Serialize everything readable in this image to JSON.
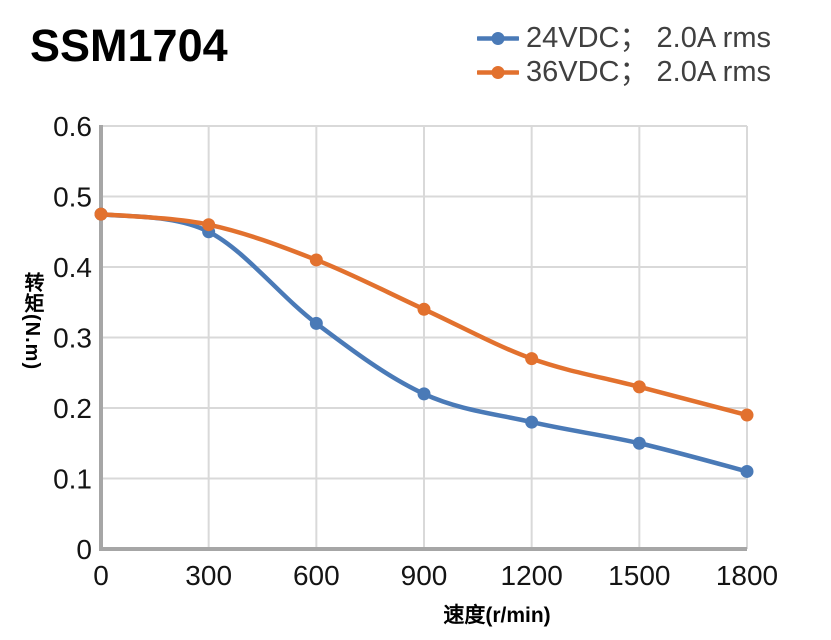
{
  "header": {
    "title": "SSM1704"
  },
  "chart_data": {
    "type": "line",
    "title": "SSM1704",
    "x": [
      0,
      300,
      600,
      900,
      1200,
      1500,
      1800
    ],
    "x_tick_labels": [
      "0",
      "300",
      "600",
      "900",
      "1200",
      "1500",
      "1800"
    ],
    "y_ticks": [
      0,
      0.1,
      0.2,
      0.3,
      0.4,
      0.5,
      0.6
    ],
    "y_tick_labels": [
      "0",
      "0.1",
      "0.2",
      "0.3",
      "0.4",
      "0.5",
      "0.6"
    ],
    "xlabel": "速度(r/min)",
    "ylabel": "转矩(N.m)",
    "xlim": [
      0,
      1800
    ],
    "ylim": [
      0,
      0.6
    ],
    "grid": true,
    "legend_position": "top-right",
    "line_style": "smooth",
    "marker": "circle",
    "series": [
      {
        "name": "24VDC； 2.0A rms",
        "color": "#4a7ab7",
        "values": [
          0.475,
          0.45,
          0.32,
          0.22,
          0.18,
          0.15,
          0.11
        ]
      },
      {
        "name": "36VDC； 2.0A rms",
        "color": "#e2712e",
        "values": [
          0.475,
          0.46,
          0.41,
          0.34,
          0.27,
          0.23,
          0.19
        ]
      }
    ],
    "colors": {
      "grid": "#d9d9d9",
      "axis": "#a6a6a6",
      "tick_text": "#141414",
      "legend_text": "#404040",
      "title_text": "#000000"
    }
  }
}
